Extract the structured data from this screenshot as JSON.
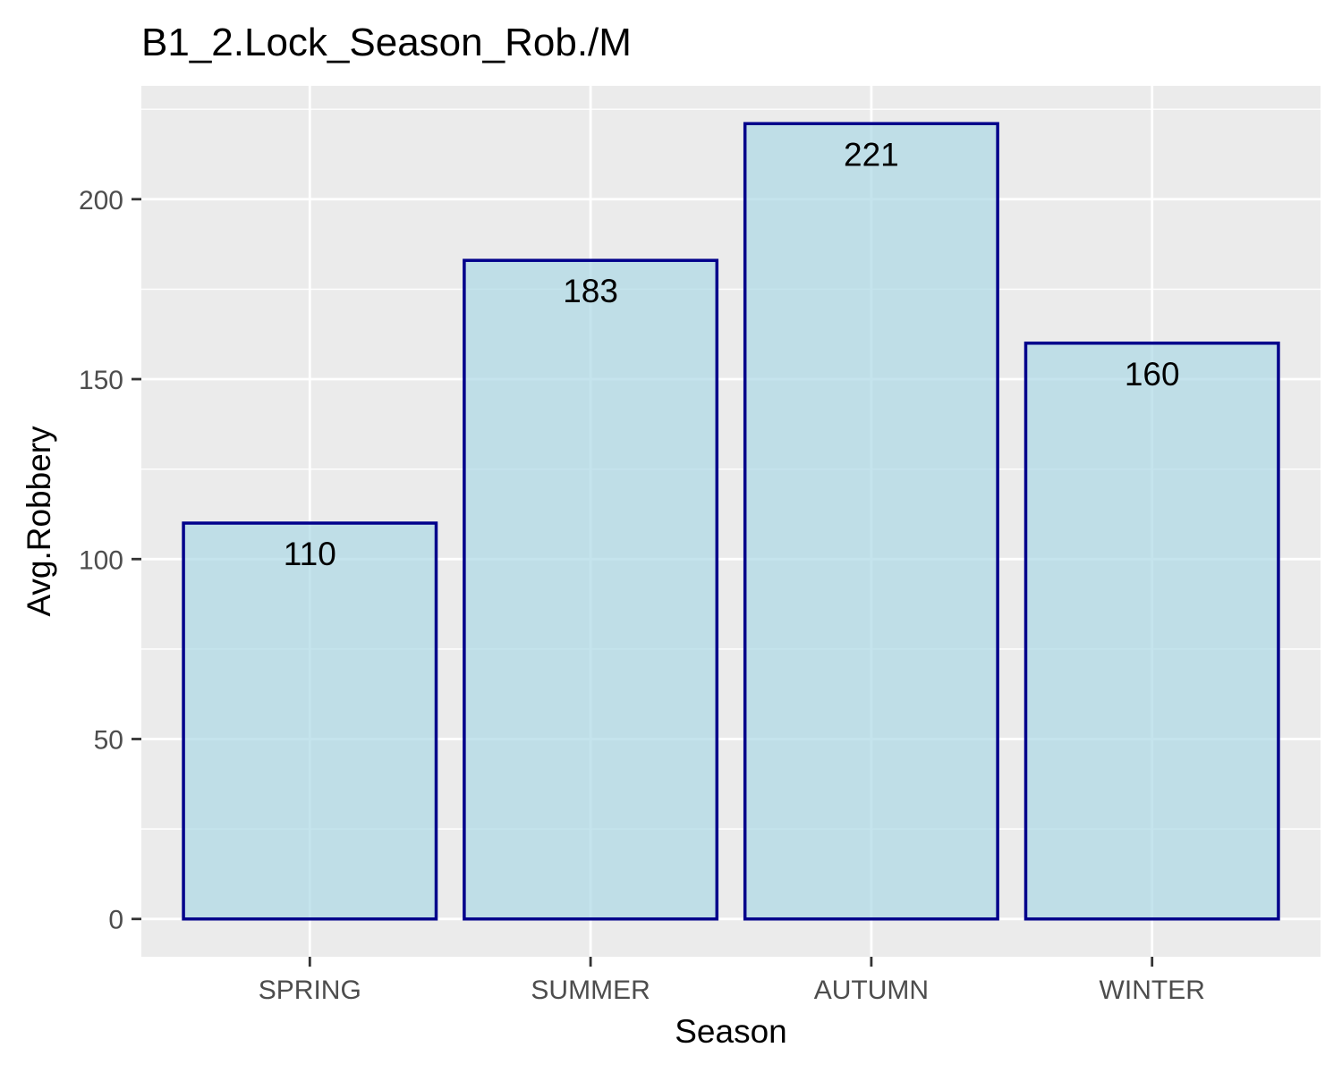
{
  "chart_data": {
    "type": "bar",
    "title": "B1_2.Lock_Season_Rob./M",
    "xlabel": "Season",
    "ylabel": "Avg.Robbery",
    "categories": [
      "SPRING",
      "SUMMER",
      "AUTUMN",
      "WINTER"
    ],
    "values": [
      110,
      183,
      221,
      160
    ],
    "data_labels": [
      "110",
      "183",
      "221",
      "160"
    ],
    "ylim": [
      -10.5,
      231.5
    ],
    "yticks": [
      0,
      50,
      100,
      150,
      200
    ],
    "ytick_labels": [
      "0",
      "50",
      "100",
      "150",
      "200"
    ],
    "grid": true,
    "legend": "none",
    "colors": {
      "bar_fill": "#add8e6",
      "bar_fill_opacity": 0.7,
      "bar_outline": "#00008b",
      "panel_background": "#ebebeb",
      "grid": "#ffffff",
      "tick_text": "#4d4d4d",
      "tick_mark": "#333333"
    }
  }
}
